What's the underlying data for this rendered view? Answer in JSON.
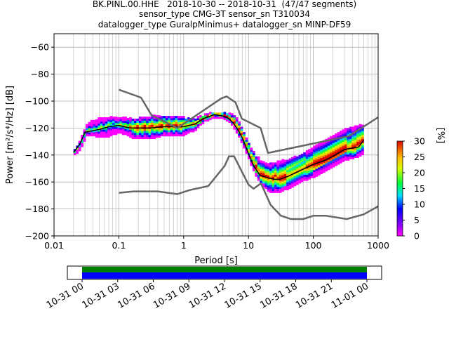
{
  "title": {
    "line1": "BK.PINL.00.HHE   2018-10-30 -- 2018-10-31  (47/47 segments)",
    "line2": "sensor_type CMG-3T sensor_sn T310034",
    "line3": "datalogger_type GuralpMinimus+ datalogger_sn MINP-DF59"
  },
  "chart_data": [
    {
      "type": "heatmap",
      "xlabel": "Period [s]",
      "ylabel": "Power [m²/s⁴/Hz] [dB]",
      "xscale": "log",
      "xlim": [
        0.01,
        1000
      ],
      "ylim": [
        -200,
        -50
      ],
      "xticks": [
        {
          "v": 0.01,
          "label": "0.01"
        },
        {
          "v": 0.1,
          "label": "0.1"
        },
        {
          "v": 1,
          "label": "1"
        },
        {
          "v": 10,
          "label": "10"
        },
        {
          "v": 100,
          "label": "100"
        },
        {
          "v": 1000,
          "label": "1000"
        }
      ],
      "yticks": [
        {
          "v": -60,
          "label": "−60"
        },
        {
          "v": -80,
          "label": "−80"
        },
        {
          "v": -100,
          "label": "−100"
        },
        {
          "v": -120,
          "label": "−120"
        },
        {
          "v": -140,
          "label": "−140"
        },
        {
          "v": -160,
          "label": "−160"
        },
        {
          "v": -180,
          "label": "−180"
        },
        {
          "v": -200,
          "label": "−200"
        }
      ],
      "grid": true,
      "colorbar": {
        "label": "[%]",
        "range": [
          0,
          30
        ],
        "ticks": [
          {
            "v": 0,
            "label": "0"
          },
          {
            "v": 5,
            "label": "5"
          },
          {
            "v": 10,
            "label": "10"
          },
          {
            "v": 15,
            "label": "15"
          },
          {
            "v": 20,
            "label": "20"
          },
          {
            "v": 25,
            "label": "25"
          },
          {
            "v": 30,
            "label": "30"
          }
        ]
      },
      "series": [
        {
          "role": "mode",
          "color": "#000000",
          "x": [
            0.02,
            0.025,
            0.03,
            0.04,
            0.05,
            0.07,
            0.1,
            0.15,
            0.2,
            0.3,
            0.5,
            0.8,
            1.0,
            1.5,
            2.0,
            3.0,
            4.0,
            5.0,
            6.0,
            7.0,
            8.0,
            10,
            12,
            15,
            20,
            25,
            30,
            40,
            60,
            100,
            150,
            200,
            300,
            500,
            600
          ],
          "y": [
            -138,
            -132,
            -123,
            -122,
            -121,
            -119,
            -118,
            -120,
            -120,
            -120,
            -119,
            -119,
            -119,
            -117,
            -113,
            -110,
            -111,
            -113,
            -117,
            -122,
            -127,
            -139,
            -148,
            -155,
            -157,
            -158,
            -158,
            -156,
            -152,
            -147,
            -144,
            -141,
            -136,
            -134,
            -129
          ]
        },
        {
          "role": "low_noise_model",
          "color": "#666666",
          "x": [
            0.1,
            0.17,
            0.4,
            0.8,
            1.24,
            2.4,
            4.3,
            5.0,
            6.0,
            10,
            12,
            15.6,
            21.9,
            31.6,
            45,
            70,
            101,
            154,
            328,
            600,
            1000
          ],
          "y": [
            -168,
            -167,
            -167,
            -169,
            -166,
            -163,
            -148,
            -141,
            -141,
            -162,
            -165,
            -161,
            -177,
            -185,
            -187.5,
            -187.5,
            -185,
            -185,
            -187.5,
            -184,
            -178
          ]
        },
        {
          "role": "high_noise_model",
          "color": "#666666",
          "x": [
            0.1,
            0.22,
            0.32,
            0.8,
            3.8,
            4.6,
            6.3,
            7.9,
            15.4,
            20,
            354,
            1000
          ],
          "y": [
            -91.5,
            -97.4,
            -110.5,
            -120,
            -98,
            -96.5,
            -101,
            -113,
            -120,
            -138.5,
            -126,
            -112
          ]
        }
      ],
      "density_band": {
        "x": [
          0.02,
          0.025,
          0.03,
          0.04,
          0.05,
          0.07,
          0.1,
          0.15,
          0.2,
          0.3,
          0.5,
          0.8,
          1.0,
          1.5,
          2.0,
          3.0,
          4.0,
          5.0,
          6.0,
          7.0,
          8.0,
          10,
          12,
          15,
          20,
          25,
          30,
          40,
          60,
          100,
          150,
          200,
          300,
          500,
          600
        ],
        "upper": [
          -136,
          -129,
          -118,
          -115,
          -113,
          -112,
          -112,
          -114,
          -113,
          -112,
          -111,
          -111,
          -113,
          -113,
          -111,
          -109,
          -109,
          -110,
          -112,
          -117,
          -122,
          -133,
          -140,
          -145,
          -147,
          -146,
          -145,
          -144,
          -140,
          -134,
          -130,
          -126,
          -122,
          -118,
          -118
        ],
        "lower": [
          -140,
          -135,
          -126,
          -126,
          -127,
          -126,
          -123,
          -127,
          -128,
          -128,
          -125,
          -126,
          -125,
          -121,
          -115,
          -112,
          -113,
          -116,
          -121,
          -127,
          -133,
          -144,
          -154,
          -162,
          -167,
          -168,
          -167,
          -165,
          -160,
          -156,
          -152,
          -148,
          -144,
          -141,
          -139
        ]
      },
      "timeline": {
        "tick_labels": [
          "10-31 00",
          "10-31 03",
          "10-31 06",
          "10-31 09",
          "10-31 12",
          "10-31 15",
          "10-31 18",
          "10-31 21",
          "11-01 00"
        ],
        "coverage_colors": [
          "#008000",
          "#0000ff"
        ]
      }
    }
  ]
}
